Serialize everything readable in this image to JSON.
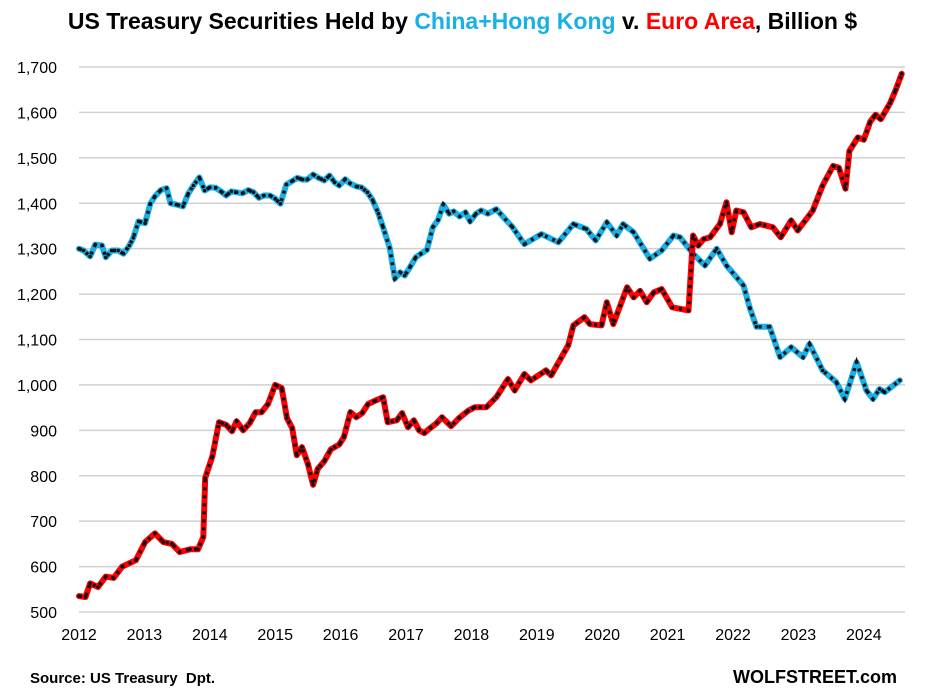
{
  "title": {
    "part1": "US Treasury Securities Held by ",
    "part2": "China+Hong Kong",
    "part3": " v. ",
    "part4": "Euro Area",
    "part5": ", Billion $"
  },
  "footer": {
    "source": "Source: US Treasury  Dpt.",
    "brand": "WOLFSTREET.com"
  },
  "chart_data": {
    "type": "line",
    "title": "US Treasury Securities Held by China+Hong Kong v. Euro Area, Billion $",
    "xlabel": "",
    "ylabel": "",
    "xlim": [
      2012,
      2024.6
    ],
    "ylim": [
      500,
      1700
    ],
    "x_ticks": [
      "2012",
      "2013",
      "2014",
      "2015",
      "2016",
      "2017",
      "2018",
      "2019",
      "2020",
      "2021",
      "2022",
      "2023",
      "2024"
    ],
    "y_ticks": [
      "500",
      "600",
      "700",
      "800",
      "900",
      "1,000",
      "1,100",
      "1,200",
      "1,300",
      "1,400",
      "1,500",
      "1,600",
      "1,700"
    ],
    "grid": "horizontal",
    "colors": {
      "china": "#19b0e8",
      "euro": "#ff0000",
      "markers": "#111111",
      "grid": "#d0d0d0"
    },
    "series": [
      {
        "name": "China+Hong Kong",
        "points": [
          [
            2012.0,
            1300
          ],
          [
            2012.07,
            1296
          ],
          [
            2012.17,
            1283
          ],
          [
            2012.25,
            1309
          ],
          [
            2012.35,
            1307
          ],
          [
            2012.41,
            1281
          ],
          [
            2012.5,
            1296
          ],
          [
            2012.6,
            1296
          ],
          [
            2012.68,
            1289
          ],
          [
            2012.77,
            1307
          ],
          [
            2012.83,
            1324
          ],
          [
            2012.91,
            1360
          ],
          [
            2013.01,
            1356
          ],
          [
            2013.09,
            1399
          ],
          [
            2013.16,
            1415
          ],
          [
            2013.25,
            1429
          ],
          [
            2013.34,
            1433
          ],
          [
            2013.4,
            1400
          ],
          [
            2013.49,
            1397
          ],
          [
            2013.59,
            1393
          ],
          [
            2013.67,
            1421
          ],
          [
            2013.75,
            1439
          ],
          [
            2013.84,
            1457
          ],
          [
            2013.92,
            1428
          ],
          [
            2014.0,
            1435
          ],
          [
            2014.09,
            1434
          ],
          [
            2014.17,
            1426
          ],
          [
            2014.25,
            1417
          ],
          [
            2014.33,
            1426
          ],
          [
            2014.41,
            1424
          ],
          [
            2014.5,
            1422
          ],
          [
            2014.59,
            1429
          ],
          [
            2014.67,
            1424
          ],
          [
            2014.75,
            1412
          ],
          [
            2014.83,
            1417
          ],
          [
            2014.92,
            1417
          ],
          [
            2015.0,
            1410
          ],
          [
            2015.08,
            1399
          ],
          [
            2015.17,
            1441
          ],
          [
            2015.25,
            1448
          ],
          [
            2015.34,
            1456
          ],
          [
            2015.42,
            1452
          ],
          [
            2015.49,
            1452
          ],
          [
            2015.58,
            1463
          ],
          [
            2015.66,
            1456
          ],
          [
            2015.75,
            1450
          ],
          [
            2015.83,
            1461
          ],
          [
            2015.91,
            1446
          ],
          [
            2015.98,
            1439
          ],
          [
            2016.07,
            1453
          ],
          [
            2016.14,
            1444
          ],
          [
            2016.24,
            1437
          ],
          [
            2016.32,
            1435
          ],
          [
            2016.41,
            1424
          ],
          [
            2016.49,
            1407
          ],
          [
            2016.58,
            1377
          ],
          [
            2016.65,
            1347
          ],
          [
            2016.75,
            1302
          ],
          [
            2016.83,
            1234
          ],
          [
            2016.91,
            1248
          ],
          [
            2016.98,
            1241
          ],
          [
            2017.06,
            1259
          ],
          [
            2017.15,
            1281
          ],
          [
            2017.23,
            1289
          ],
          [
            2017.32,
            1297
          ],
          [
            2017.41,
            1347
          ],
          [
            2017.49,
            1363
          ],
          [
            2017.57,
            1397
          ],
          [
            2017.66,
            1377
          ],
          [
            2017.73,
            1382
          ],
          [
            2017.82,
            1371
          ],
          [
            2017.91,
            1380
          ],
          [
            2017.98,
            1360
          ],
          [
            2018.07,
            1377
          ],
          [
            2018.15,
            1384
          ],
          [
            2018.25,
            1377
          ],
          [
            2018.38,
            1387
          ],
          [
            2018.63,
            1347
          ],
          [
            2018.81,
            1310
          ],
          [
            2019.07,
            1332
          ],
          [
            2019.33,
            1314
          ],
          [
            2019.56,
            1354
          ],
          [
            2019.76,
            1343
          ],
          [
            2019.9,
            1318
          ],
          [
            2020.07,
            1358
          ],
          [
            2020.22,
            1329
          ],
          [
            2020.32,
            1354
          ],
          [
            2020.48,
            1336
          ],
          [
            2020.73,
            1278
          ],
          [
            2020.91,
            1296
          ],
          [
            2021.09,
            1329
          ],
          [
            2021.19,
            1325
          ],
          [
            2021.39,
            1289
          ],
          [
            2021.57,
            1263
          ],
          [
            2021.75,
            1300
          ],
          [
            2021.9,
            1263
          ],
          [
            2022.16,
            1219
          ],
          [
            2022.26,
            1168
          ],
          [
            2022.36,
            1128
          ],
          [
            2022.56,
            1128
          ],
          [
            2022.72,
            1061
          ],
          [
            2022.89,
            1083
          ],
          [
            2023.07,
            1061
          ],
          [
            2023.17,
            1090
          ],
          [
            2023.37,
            1032
          ],
          [
            2023.58,
            1006
          ],
          [
            2023.71,
            969
          ],
          [
            2023.89,
            1050
          ],
          [
            2024.04,
            988
          ],
          [
            2024.14,
            969
          ],
          [
            2024.24,
            991
          ],
          [
            2024.32,
            984
          ],
          [
            2024.55,
            1010
          ]
        ]
      },
      {
        "name": "Euro Area",
        "points": [
          [
            2012.0,
            535
          ],
          [
            2012.1,
            533
          ],
          [
            2012.17,
            563
          ],
          [
            2012.29,
            555
          ],
          [
            2012.41,
            578
          ],
          [
            2012.53,
            575
          ],
          [
            2012.66,
            600
          ],
          [
            2012.87,
            614
          ],
          [
            2013.01,
            654
          ],
          [
            2013.16,
            673
          ],
          [
            2013.29,
            654
          ],
          [
            2013.42,
            650
          ],
          [
            2013.54,
            632
          ],
          [
            2013.7,
            638
          ],
          [
            2013.82,
            638
          ],
          [
            2013.9,
            665
          ],
          [
            2013.93,
            795
          ],
          [
            2014.04,
            843
          ],
          [
            2014.14,
            918
          ],
          [
            2014.25,
            912
          ],
          [
            2014.34,
            898
          ],
          [
            2014.41,
            920
          ],
          [
            2014.51,
            900
          ],
          [
            2014.61,
            916
          ],
          [
            2014.7,
            940
          ],
          [
            2014.79,
            940
          ],
          [
            2014.89,
            958
          ],
          [
            2015.0,
            1000
          ],
          [
            2015.1,
            993
          ],
          [
            2015.18,
            927
          ],
          [
            2015.26,
            905
          ],
          [
            2015.33,
            845
          ],
          [
            2015.41,
            863
          ],
          [
            2015.5,
            826
          ],
          [
            2015.58,
            780
          ],
          [
            2015.65,
            815
          ],
          [
            2015.75,
            832
          ],
          [
            2015.85,
            858
          ],
          [
            2015.98,
            869
          ],
          [
            2016.05,
            885
          ],
          [
            2016.15,
            940
          ],
          [
            2016.24,
            929
          ],
          [
            2016.33,
            938
          ],
          [
            2016.42,
            958
          ],
          [
            2016.54,
            966
          ],
          [
            2016.65,
            973
          ],
          [
            2016.72,
            918
          ],
          [
            2016.86,
            922
          ],
          [
            2016.94,
            938
          ],
          [
            2017.03,
            907
          ],
          [
            2017.12,
            922
          ],
          [
            2017.2,
            900
          ],
          [
            2017.28,
            894
          ],
          [
            2017.37,
            905
          ],
          [
            2017.47,
            916
          ],
          [
            2017.55,
            929
          ],
          [
            2017.69,
            909
          ],
          [
            2017.81,
            927
          ],
          [
            2017.95,
            943
          ],
          [
            2018.05,
            951
          ],
          [
            2018.13,
            951
          ],
          [
            2018.23,
            951
          ],
          [
            2018.38,
            973
          ],
          [
            2018.56,
            1013
          ],
          [
            2018.66,
            988
          ],
          [
            2018.81,
            1024
          ],
          [
            2018.91,
            1010
          ],
          [
            2019.14,
            1032
          ],
          [
            2019.22,
            1021
          ],
          [
            2019.48,
            1087
          ],
          [
            2019.56,
            1131
          ],
          [
            2019.73,
            1149
          ],
          [
            2019.81,
            1134
          ],
          [
            2019.99,
            1131
          ],
          [
            2020.07,
            1182
          ],
          [
            2020.17,
            1134
          ],
          [
            2020.38,
            1215
          ],
          [
            2020.48,
            1193
          ],
          [
            2020.58,
            1207
          ],
          [
            2020.68,
            1182
          ],
          [
            2020.79,
            1204
          ],
          [
            2020.91,
            1211
          ],
          [
            2021.07,
            1171
          ],
          [
            2021.32,
            1164
          ],
          [
            2021.39,
            1329
          ],
          [
            2021.47,
            1307
          ],
          [
            2021.55,
            1321
          ],
          [
            2021.65,
            1325
          ],
          [
            2021.8,
            1354
          ],
          [
            2021.9,
            1402
          ],
          [
            2021.98,
            1336
          ],
          [
            2022.05,
            1384
          ],
          [
            2022.16,
            1380
          ],
          [
            2022.28,
            1347
          ],
          [
            2022.41,
            1354
          ],
          [
            2022.61,
            1347
          ],
          [
            2022.73,
            1325
          ],
          [
            2022.89,
            1362
          ],
          [
            2022.99,
            1340
          ],
          [
            2023.22,
            1384
          ],
          [
            2023.37,
            1439
          ],
          [
            2023.53,
            1482
          ],
          [
            2023.62,
            1478
          ],
          [
            2023.72,
            1432
          ],
          [
            2023.78,
            1515
          ],
          [
            2023.91,
            1545
          ],
          [
            2024.0,
            1540
          ],
          [
            2024.1,
            1580
          ],
          [
            2024.18,
            1595
          ],
          [
            2024.26,
            1585
          ],
          [
            2024.4,
            1620
          ],
          [
            2024.49,
            1650
          ],
          [
            2024.58,
            1685
          ]
        ]
      }
    ]
  }
}
